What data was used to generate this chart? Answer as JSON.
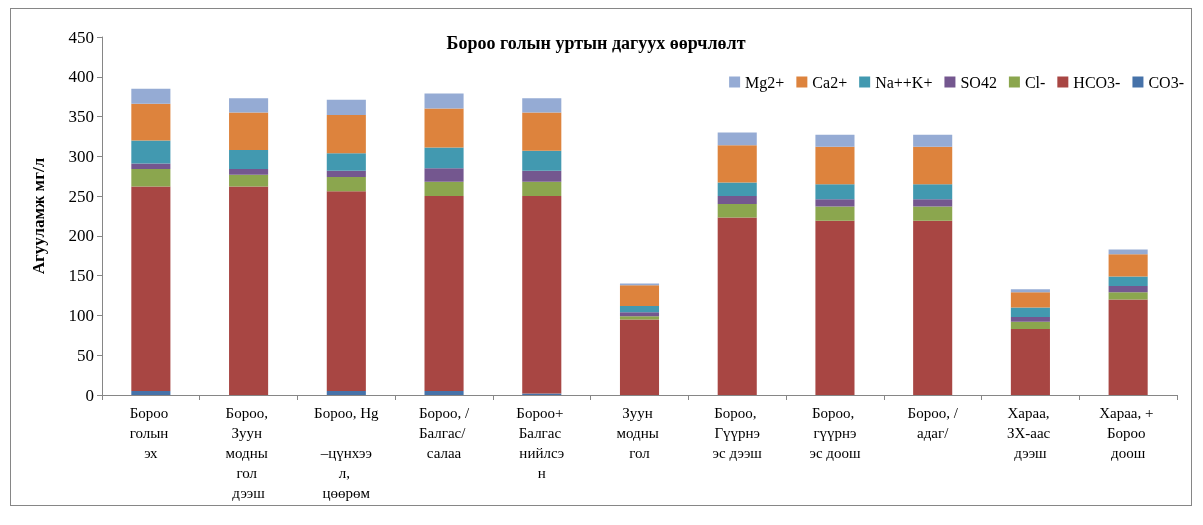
{
  "chart_data": {
    "type": "bar",
    "title": "Бороо голын уртын дагуух өөрчлөлт",
    "ylabel": "Агууламж мг/л",
    "stacked": true,
    "legend": "top right",
    "ylim": [
      0,
      450
    ],
    "yticks": [
      0,
      50,
      100,
      150,
      200,
      250,
      300,
      350,
      400,
      450
    ],
    "categories": [
      "Бороо голын эх",
      "Бороо, Зуун модны гол дээш",
      "Бороо, Hg –цүнхээл, цөөрөм",
      "Бороо, /Балгас/ салаа",
      "Бороо+ Балгас нийлсэн",
      "Зуун модны гол",
      "Бороо, Гүүрнээс дээш",
      "Бороо, гүүрнээс доош",
      "Бороо, /адаг/",
      "Хараа, ЗХ-аас дээш",
      "Хараа, + Бороо доош"
    ],
    "series": [
      {
        "name": "CO3-",
        "color": "#4672a9",
        "values": [
          5,
          0,
          5,
          5,
          2,
          0,
          0,
          0,
          0,
          0,
          0
        ]
      },
      {
        "name": "HCO3-",
        "color": "#a84643",
        "values": [
          257,
          262,
          251,
          245,
          248,
          95,
          223,
          219,
          219,
          83,
          120
        ]
      },
      {
        "name": "Cl-",
        "color": "#8ba64e",
        "values": [
          22,
          15,
          18,
          18,
          18,
          4,
          17,
          18,
          18,
          9,
          9
        ]
      },
      {
        "name": "SO42",
        "color": "#74578f",
        "values": [
          7,
          7,
          8,
          17,
          14,
          5,
          10,
          9,
          9,
          6,
          8
        ]
      },
      {
        "name": "Na++K+",
        "color": "#4299b0",
        "values": [
          29,
          24,
          22,
          26,
          25,
          8,
          17,
          19,
          19,
          12,
          12
        ]
      },
      {
        "name": "Ca2+",
        "color": "#dd833d",
        "values": [
          46,
          47,
          48,
          49,
          48,
          26,
          47,
          47,
          47,
          19,
          28
        ]
      },
      {
        "name": "Mg2+",
        "color": "#95abd4",
        "values": [
          19,
          18,
          19,
          19,
          18,
          2,
          16,
          15,
          15,
          4,
          6
        ]
      }
    ]
  }
}
